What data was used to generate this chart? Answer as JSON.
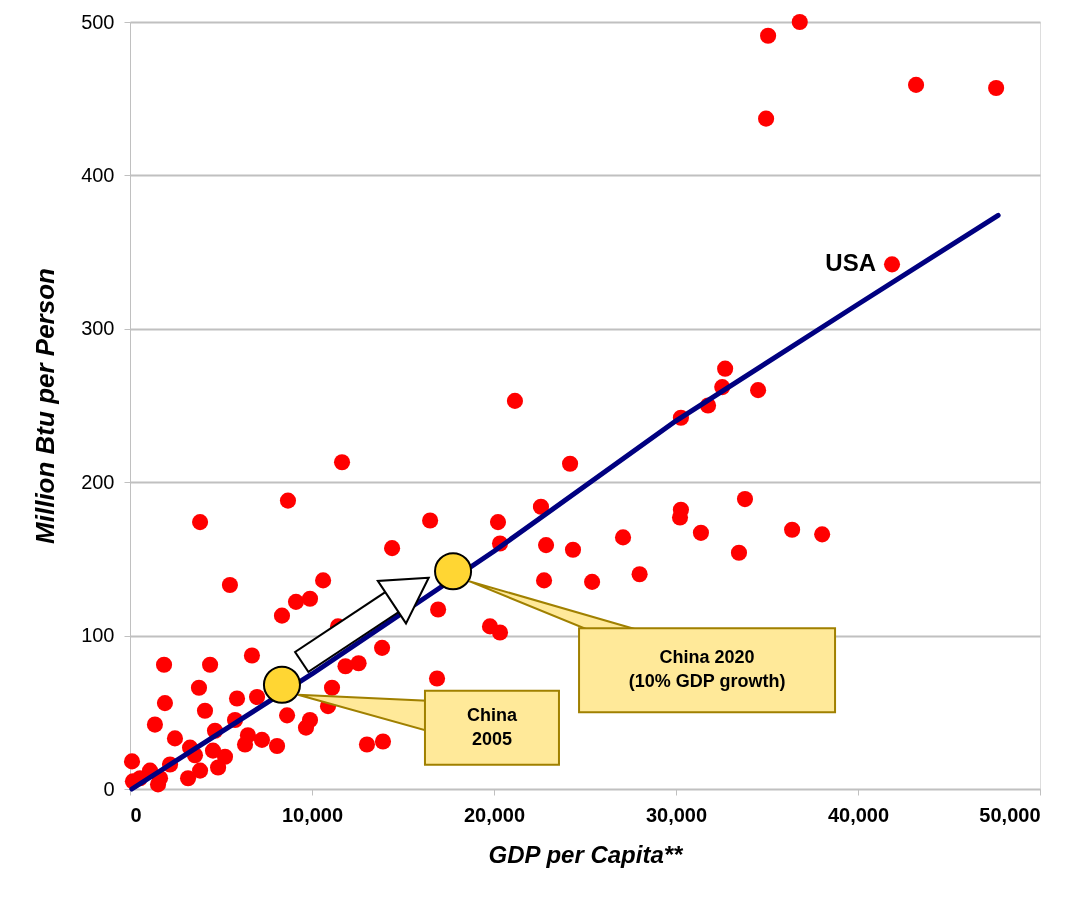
{
  "chart_data": {
    "type": "scatter",
    "xlabel": "GDP per Capita**",
    "ylabel": "Million Btu per Person",
    "xlim": [
      0,
      50000
    ],
    "ylim": [
      0,
      500
    ],
    "xticks": [
      0,
      {
        "value": 10000,
        "label": "10,000"
      },
      {
        "value": 20000,
        "label": "20,000"
      },
      {
        "value": 30000,
        "label": "30,000"
      },
      {
        "value": 40000,
        "label": "40,000"
      },
      {
        "value": 50000,
        "label": "50,000"
      }
    ],
    "yticks": [
      0,
      100,
      200,
      300,
      400,
      500
    ],
    "grid": "y",
    "marker": "circle",
    "series": [
      {
        "color": "#ff0000",
        "x": [
          35060,
          36800,
          43190,
          47590,
          34950,
          41870,
          32700,
          32540,
          34510,
          31760,
          30270,
          21150,
          24180,
          11650,
          8680,
          33790,
          22580,
          30270,
          30220,
          20220,
          16490,
          3850,
          27090,
          31370,
          36380,
          38030,
          20330,
          22860,
          24340,
          33460,
          14400,
          28000,
          25390,
          22750,
          5490,
          10610,
          9890,
          9120,
          8350,
          16930,
          19780,
          20330,
          11430,
          13850,
          12560,
          11840,
          1870,
          4400,
          6700,
          16870,
          3790,
          1920,
          4120,
          5880,
          6980,
          11100,
          10880,
          9890,
          8630,
          1370,
          2470,
          5770,
          4670,
          6480,
          8080,
          9670,
          13020,
          13900,
          110,
          3300,
          5220,
          4840,
          3190,
          1540,
          160,
          1100,
          2200,
          3850,
          6320,
          1650,
          550,
          3570,
          4560,
          7250
        ],
        "values": [
          491,
          500,
          459,
          457,
          437,
          342,
          274,
          262,
          260,
          250,
          242,
          253,
          212,
          213,
          188,
          189,
          184,
          182,
          177,
          174,
          175,
          174,
          164,
          167,
          169,
          166,
          160,
          159,
          156,
          154,
          157,
          140,
          135,
          136,
          133,
          136,
          124,
          122,
          113,
          117,
          106,
          102,
          106,
          92,
          82,
          80,
          81,
          81,
          87,
          72,
          66,
          56,
          51,
          59,
          60,
          66,
          54,
          45,
          48,
          42,
          33,
          45,
          38,
          35,
          28,
          40,
          29,
          31,
          18,
          27,
          21,
          14,
          7,
          3,
          5,
          12,
          16,
          12,
          29,
          7,
          7,
          22,
          25,
          32
        ]
      },
      {
        "type": "line",
        "color": "#000080",
        "marker": "none",
        "line_style": "solid",
        "x": [
          100,
          10000,
          20000,
          30000,
          40000,
          47700
        ],
        "values": [
          0,
          75,
          155,
          240,
          316,
          374
        ]
      },
      {
        "color": "#ffd633",
        "x": [
          8350,
          17750
        ],
        "values": [
          68,
          142
        ]
      }
    ],
    "annotations": [
      {
        "text": "USA",
        "x": 41870,
        "y": 342
      },
      "China\n2005",
      "China 2020\n(10% GDP growth)"
    ]
  }
}
